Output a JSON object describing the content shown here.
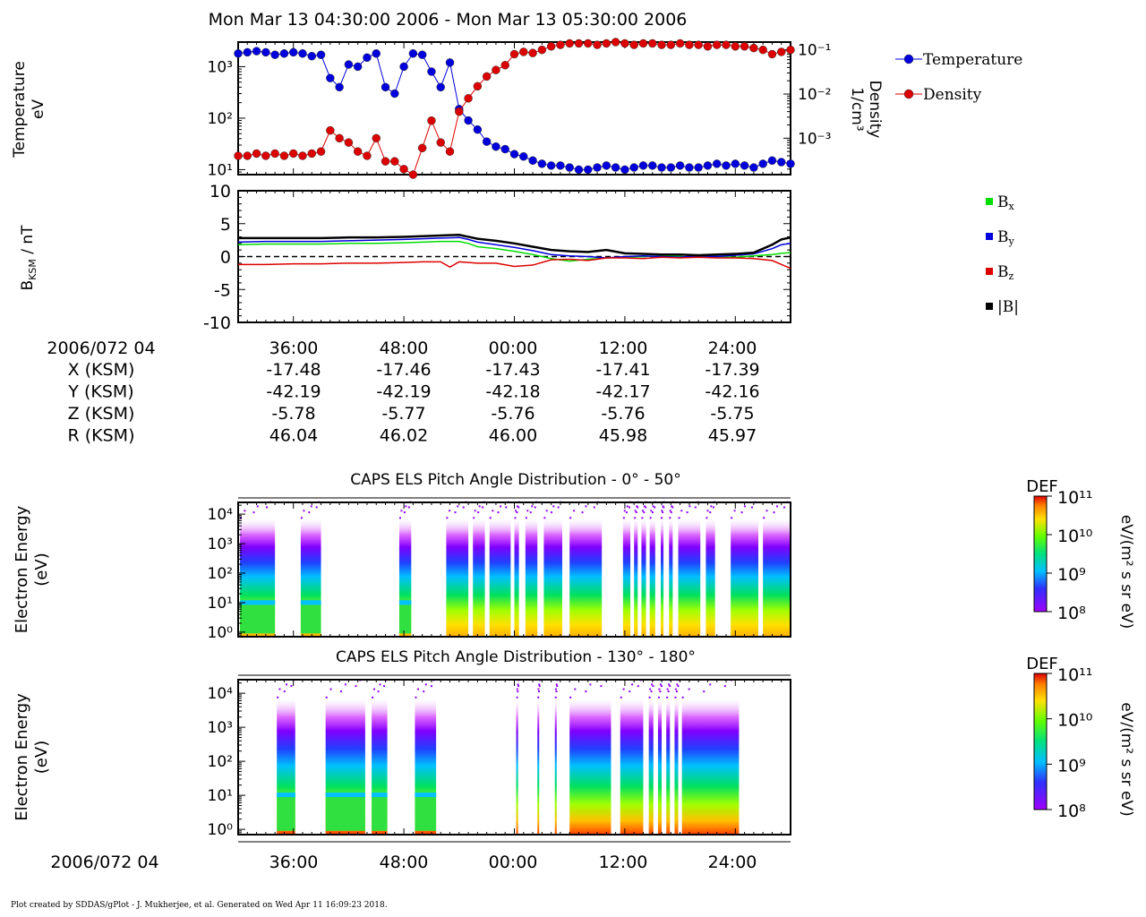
{
  "footer": "Plot created by SDDAS/gPlot - J. Mukherjee, et al.  Generated on Wed Apr 11 16:09:23 2018.",
  "chart_data": [
    {
      "type": "line",
      "title": "Mon Mar 13 04:30:00 2006 - Mon Mar 13 05:30:00 2006",
      "ylabel": "Temperature eV",
      "y2label": "Density 1/cm³",
      "yscale": "log",
      "ylim": [
        8,
        3000
      ],
      "y2lim": [
        0.00015,
        0.15
      ],
      "ytick_labels": [
        "10¹",
        "10²",
        "10³"
      ],
      "y2tick_labels": [
        "10⁻³",
        "10⁻²",
        "10⁻¹"
      ],
      "xlim_minutes": [
        30,
        90
      ],
      "legend_position": "right",
      "series": [
        {
          "name": "Temperature",
          "axis": "left",
          "color": "#0000dd",
          "x": [
            30,
            31,
            32,
            33,
            34,
            35,
            36,
            37,
            38,
            39,
            40,
            41,
            42,
            43,
            44,
            45,
            46,
            47,
            48,
            49,
            50,
            51,
            52,
            53,
            54,
            55,
            56,
            57,
            58,
            59,
            60,
            61,
            62,
            63,
            64,
            65,
            66,
            67,
            68,
            69,
            70,
            71,
            72,
            73,
            74,
            75,
            76,
            77,
            78,
            79,
            80,
            81,
            82,
            83,
            84,
            85,
            86,
            87,
            88,
            89,
            90
          ],
          "values": [
            1800,
            1900,
            2000,
            1900,
            1700,
            1800,
            1900,
            1800,
            1600,
            1700,
            600,
            400,
            1100,
            1000,
            1500,
            1800,
            400,
            300,
            1000,
            1800,
            1700,
            800,
            400,
            1200,
            150,
            90,
            60,
            35,
            28,
            25,
            20,
            18,
            15,
            13,
            12,
            12,
            11,
            10,
            10,
            11,
            12,
            11,
            10,
            11,
            12,
            12,
            11,
            11,
            12,
            11,
            11,
            12,
            13,
            12,
            13,
            12,
            11,
            13,
            15,
            14,
            13
          ]
        },
        {
          "name": "Density",
          "axis": "right",
          "color": "#dd0000",
          "x": [
            30,
            31,
            32,
            33,
            34,
            35,
            36,
            37,
            38,
            39,
            40,
            41,
            42,
            43,
            44,
            45,
            46,
            47,
            48,
            49,
            50,
            51,
            52,
            53,
            54,
            55,
            56,
            57,
            58,
            59,
            60,
            61,
            62,
            63,
            64,
            65,
            66,
            67,
            68,
            69,
            70,
            71,
            72,
            73,
            74,
            75,
            76,
            77,
            78,
            79,
            80,
            81,
            82,
            83,
            84,
            85,
            86,
            87,
            88,
            89,
            90
          ],
          "values": [
            0.0004,
            0.0004,
            0.00045,
            0.0004,
            0.00045,
            0.0004,
            0.00045,
            0.0004,
            0.00045,
            0.0005,
            0.0015,
            0.001,
            0.0008,
            0.0005,
            0.0004,
            0.001,
            0.0003,
            0.0003,
            0.0002,
            0.00012,
            0.0006,
            0.0025,
            0.0008,
            0.0005,
            0.004,
            0.008,
            0.015,
            0.025,
            0.035,
            0.045,
            0.08,
            0.09,
            0.085,
            0.1,
            0.12,
            0.13,
            0.14,
            0.14,
            0.14,
            0.13,
            0.14,
            0.15,
            0.14,
            0.13,
            0.14,
            0.14,
            0.13,
            0.13,
            0.14,
            0.13,
            0.13,
            0.12,
            0.13,
            0.13,
            0.12,
            0.12,
            0.11,
            0.1,
            0.08,
            0.09,
            0.1
          ]
        }
      ]
    },
    {
      "type": "line",
      "ylabel": "B",
      "ylabel_sub": "KSM",
      "ylabel_unit": " / nT",
      "ylim": [
        -10,
        10
      ],
      "yticks": [
        -10,
        -5,
        0,
        5,
        10
      ],
      "ytick_labels": [
        "-10",
        "-5",
        "0",
        "5",
        "10"
      ],
      "xlim_minutes": [
        30,
        90
      ],
      "zero_line": "dashed",
      "legend_position": "right",
      "series": [
        {
          "name": "B",
          "sub": "x",
          "color": "#00dd00",
          "x": [
            30,
            33,
            36,
            39,
            42,
            45,
            48,
            50,
            52,
            54,
            55,
            56,
            58,
            60,
            62,
            64,
            66,
            68,
            70,
            72,
            74,
            76,
            78,
            80,
            82,
            84,
            86,
            88,
            89,
            90
          ],
          "values": [
            1.8,
            1.9,
            1.9,
            1.9,
            2.0,
            2.0,
            2.1,
            2.2,
            2.3,
            2.3,
            2.0,
            1.5,
            1.2,
            0.8,
            0.3,
            -0.3,
            -0.7,
            -0.4,
            -0.2,
            -0.1,
            0.0,
            0.1,
            0.0,
            -0.1,
            0.0,
            -0.1,
            0.1,
            0.3,
            0.5,
            0.6
          ]
        },
        {
          "name": "B",
          "sub": "y",
          "color": "#0000dd",
          "x": [
            30,
            33,
            36,
            39,
            42,
            45,
            48,
            50,
            52,
            54,
            55,
            56,
            58,
            60,
            62,
            64,
            66,
            68,
            70,
            72,
            74,
            76,
            78,
            80,
            82,
            84,
            86,
            88,
            89,
            90
          ],
          "values": [
            2.2,
            2.3,
            2.3,
            2.3,
            2.4,
            2.5,
            2.6,
            2.7,
            2.8,
            2.9,
            2.6,
            2.2,
            1.8,
            1.4,
            0.9,
            0.3,
            0.1,
            0.0,
            -0.2,
            0.0,
            0.1,
            0.0,
            -0.1,
            0.1,
            0.0,
            0.2,
            0.4,
            1.2,
            1.8,
            2.0
          ]
        },
        {
          "name": "B",
          "sub": "z",
          "color": "#dd0000",
          "x": [
            30,
            33,
            36,
            39,
            42,
            45,
            48,
            50,
            52,
            53,
            54,
            56,
            58,
            60,
            62,
            64,
            66,
            68,
            70,
            72,
            74,
            76,
            78,
            80,
            82,
            84,
            86,
            88,
            89,
            90
          ],
          "values": [
            -1.2,
            -1.2,
            -1.1,
            -1.1,
            -1.0,
            -1.0,
            -0.9,
            -0.8,
            -0.8,
            -1.6,
            -0.8,
            -1.0,
            -1.0,
            -1.5,
            -1.3,
            -0.5,
            -0.4,
            -0.6,
            -0.2,
            -0.2,
            -0.3,
            -0.1,
            -0.2,
            -0.1,
            -0.2,
            -0.2,
            -0.3,
            -0.6,
            -1.2,
            -1.8
          ]
        },
        {
          "name": "|B|",
          "sub": "",
          "color": "#000000",
          "x": [
            30,
            33,
            36,
            39,
            42,
            45,
            48,
            50,
            52,
            54,
            55,
            56,
            58,
            60,
            62,
            64,
            66,
            68,
            70,
            72,
            74,
            76,
            78,
            80,
            82,
            84,
            86,
            88,
            89,
            90
          ],
          "values": [
            2.8,
            2.8,
            2.8,
            2.8,
            2.9,
            2.9,
            3.0,
            3.1,
            3.2,
            3.3,
            3.0,
            2.7,
            2.4,
            2.0,
            1.5,
            1.0,
            0.8,
            0.7,
            1.0,
            0.5,
            0.4,
            0.3,
            0.3,
            0.2,
            0.3,
            0.4,
            0.6,
            1.8,
            2.6,
            2.9
          ]
        }
      ]
    },
    {
      "type": "table",
      "x_axis_title": "2006/072 04",
      "ticks_minutes": [
        36,
        48,
        60,
        72,
        84
      ],
      "tick_labels": [
        "36:00",
        "48:00",
        "00:00",
        "12:00",
        "24:00"
      ],
      "rows": [
        {
          "label": "X (KSM)",
          "values": [
            "-17.48",
            "-17.46",
            "-17.43",
            "-17.41",
            "-17.39"
          ]
        },
        {
          "label": "Y (KSM)",
          "values": [
            "-42.19",
            "-42.19",
            "-42.18",
            "-42.17",
            "-42.16"
          ]
        },
        {
          "label": "Z (KSM)",
          "values": [
            "-5.78",
            "-5.77",
            "-5.76",
            "-5.76",
            "-5.75"
          ]
        },
        {
          "label": "R (KSM)",
          "values": [
            "46.04",
            "46.02",
            "46.00",
            "45.98",
            "45.97"
          ]
        }
      ]
    },
    {
      "type": "heatmap",
      "title": "CAPS ELS Pitch Angle Distribution - 0° - 50°",
      "ylabel": [
        "Electron Energy",
        "(eV)"
      ],
      "yscale": "log",
      "ylim": [
        0.7,
        25000
      ],
      "ytick_labels": [
        "10⁰",
        "10¹",
        "10²",
        "10³",
        "10⁴"
      ],
      "colorbar": {
        "label": "DEF",
        "units": "eV/(m² s sr eV)",
        "tick_labels": [
          "10⁸",
          "10⁹",
          "10¹⁰",
          "10¹¹"
        ],
        "range_log": [
          8,
          11
        ]
      },
      "blocks_minutes": [
        [
          30.2,
          34
        ],
        [
          36.8,
          39
        ],
        [
          47.5,
          48.8
        ],
        [
          52.6,
          55
        ],
        [
          55.5,
          56.8
        ],
        [
          57.3,
          59.6
        ],
        [
          60,
          60.5
        ],
        [
          61.2,
          62.5
        ],
        [
          63.2,
          65.2
        ],
        [
          66,
          69.5
        ],
        [
          71.8,
          72.6
        ],
        [
          73,
          73.4
        ],
        [
          73.8,
          74.3
        ],
        [
          74.7,
          75.3
        ],
        [
          75.9,
          76.2
        ],
        [
          76.8,
          77.2
        ],
        [
          77.8,
          80.2
        ],
        [
          80.8,
          81.8
        ],
        [
          83.5,
          86.5
        ],
        [
          87,
          90
        ]
      ],
      "low_energy_minutes": [
        [
          30.2,
          34
        ],
        [
          36.8,
          39
        ],
        [
          47.5,
          48.8
        ]
      ]
    },
    {
      "type": "heatmap",
      "title": "CAPS ELS Pitch Angle Distribution - 130° - 180°",
      "ylabel": [
        "Electron Energy",
        "(eV)"
      ],
      "yscale": "log",
      "ylim": [
        0.7,
        25000
      ],
      "ytick_labels": [
        "10⁰",
        "10¹",
        "10²",
        "10³",
        "10⁴"
      ],
      "colorbar": {
        "label": "DEF",
        "units": "eV/(m² s sr eV)",
        "tick_labels": [
          "10⁸",
          "10⁹",
          "10¹⁰",
          "10¹¹"
        ],
        "range_log": [
          8,
          11
        ]
      },
      "blocks_minutes": [
        [
          34.2,
          36.2
        ],
        [
          39.5,
          43.8
        ],
        [
          44.5,
          46.2
        ],
        [
          49.2,
          51.5
        ],
        [
          60.2,
          60.4
        ],
        [
          62.5,
          62.7
        ],
        [
          64.4,
          64.6
        ],
        [
          66,
          70.5
        ],
        [
          71.5,
          74
        ],
        [
          74.6,
          75.1
        ],
        [
          75.6,
          76
        ],
        [
          76.5,
          76.9
        ],
        [
          77.4,
          77.8
        ],
        [
          78.2,
          84.4
        ]
      ],
      "low_energy_minutes": [
        [
          34.2,
          36.2
        ],
        [
          39.5,
          43.8
        ],
        [
          44.5,
          46.2
        ],
        [
          49.2,
          51.5
        ]
      ],
      "x_axis_title": "2006/072 04",
      "tick_labels": [
        "36:00",
        "48:00",
        "00:00",
        "12:00",
        "24:00"
      ]
    }
  ]
}
